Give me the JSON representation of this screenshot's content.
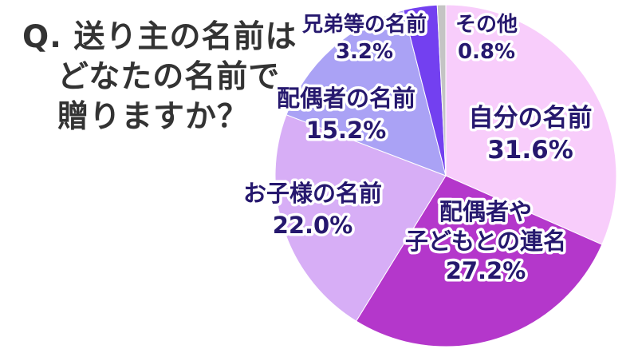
{
  "title_lines": [
    "Q. 送り主の名前は",
    "どなたの名前で",
    "贈りますか？"
  ],
  "chart_data": {
    "type": "pie",
    "slices": [
      {
        "label": "自分の名前",
        "value": 31.6,
        "display": "31.6%",
        "color": "#f8cdfb"
      },
      {
        "label": "配偶者や子どもとの連名",
        "label_lines": [
          "配偶者や",
          "子どもとの連名"
        ],
        "value": 27.2,
        "display": "27.2%",
        "color": "#b437cb"
      },
      {
        "label": "お子様の名前",
        "value": 22.0,
        "display": "22.0%",
        "color": "#d7aef6"
      },
      {
        "label": "配偶者の名前",
        "value": 15.2,
        "display": "15.2%",
        "color": "#aaa2f5"
      },
      {
        "label": "兄弟等の名前",
        "value": 3.2,
        "display": "3.2%",
        "color": "#7340f0"
      },
      {
        "label": "その他",
        "value": 0.8,
        "display": "0.8%",
        "color": "#c4c4c4"
      }
    ]
  }
}
